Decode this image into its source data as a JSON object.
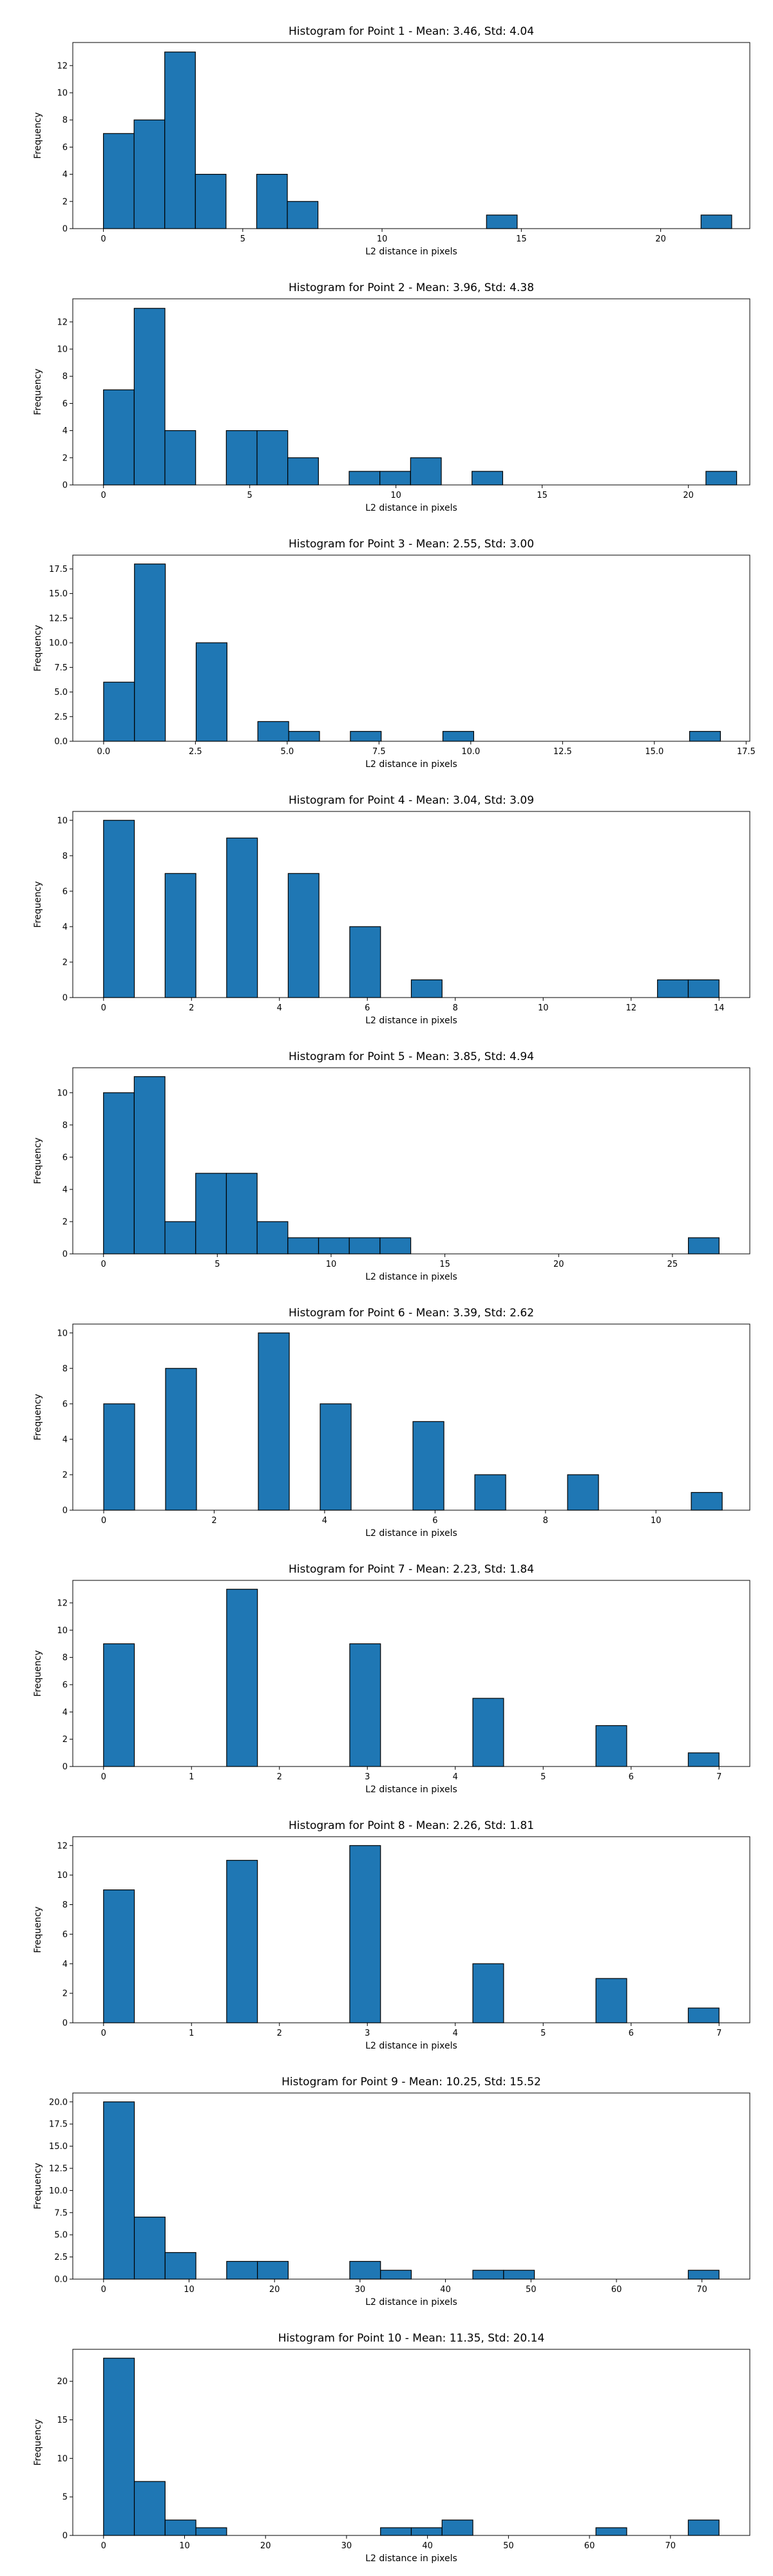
{
  "chart_data": [
    {
      "type": "bar",
      "title": "Histogram for Point 1 - Mean: 3.46, Std: 4.04",
      "xlabel": "L2 distance in pixels",
      "ylabel": "Frequency",
      "xlim": [
        -1.1,
        23.2
      ],
      "ylim": [
        0,
        13.7
      ],
      "xticks": [
        0,
        5,
        10,
        15,
        20
      ],
      "xtick_labels": [
        "0",
        "5",
        "10",
        "15",
        "20"
      ],
      "yticks": [
        0,
        2,
        4,
        6,
        8,
        10,
        12
      ],
      "ytick_labels": [
        "0",
        "2",
        "4",
        "6",
        "8",
        "10",
        "12"
      ],
      "bin_width": 1.1,
      "bins": [
        {
          "x": 0,
          "count": 7
        },
        {
          "x": 1.1,
          "count": 8
        },
        {
          "x": 2.2,
          "count": 13
        },
        {
          "x": 3.3,
          "count": 4
        },
        {
          "x": 5.5,
          "count": 4
        },
        {
          "x": 6.6,
          "count": 2
        },
        {
          "x": 13.75,
          "count": 1
        },
        {
          "x": 21.45,
          "count": 1
        }
      ]
    },
    {
      "type": "bar",
      "title": "Histogram for Point 2 - Mean: 3.96, Std: 4.38",
      "xlabel": "L2 distance in pixels",
      "ylabel": "Frequency",
      "xlim": [
        -1.05,
        22.1
      ],
      "ylim": [
        0,
        13.7
      ],
      "xticks": [
        0,
        5,
        10,
        15,
        20
      ],
      "xtick_labels": [
        "0",
        "5",
        "10",
        "15",
        "20"
      ],
      "yticks": [
        0,
        2,
        4,
        6,
        8,
        10,
        12
      ],
      "ytick_labels": [
        "0",
        "2",
        "4",
        "6",
        "8",
        "10",
        "12"
      ],
      "bin_width": 1.05,
      "bins": [
        {
          "x": 0,
          "count": 7
        },
        {
          "x": 1.05,
          "count": 13
        },
        {
          "x": 2.1,
          "count": 4
        },
        {
          "x": 4.2,
          "count": 4
        },
        {
          "x": 5.25,
          "count": 4
        },
        {
          "x": 6.3,
          "count": 2
        },
        {
          "x": 8.4,
          "count": 1
        },
        {
          "x": 9.45,
          "count": 1
        },
        {
          "x": 10.5,
          "count": 2
        },
        {
          "x": 12.6,
          "count": 1
        },
        {
          "x": 20.6,
          "count": 1
        }
      ]
    },
    {
      "type": "bar",
      "title": "Histogram for Point 3 - Mean: 2.55, Std: 3.00",
      "xlabel": "L2 distance in pixels",
      "ylabel": "Frequency",
      "xlim": [
        -0.84,
        17.6
      ],
      "ylim": [
        0,
        18.9
      ],
      "xticks": [
        0.0,
        2.5,
        5.0,
        7.5,
        10.0,
        12.5,
        15.0,
        17.5
      ],
      "xtick_labels": [
        "0.0",
        "2.5",
        "5.0",
        "7.5",
        "10.0",
        "12.5",
        "15.0",
        "17.5"
      ],
      "yticks": [
        0,
        2.5,
        5,
        7.5,
        10,
        12.5,
        15,
        17.5
      ],
      "ytick_labels": [
        "0.0",
        "2.5",
        "5.0",
        "7.5",
        "10.0",
        "12.5",
        "15.0",
        "17.5"
      ],
      "bin_width": 0.84,
      "bins": [
        {
          "x": 0,
          "count": 6
        },
        {
          "x": 0.84,
          "count": 18
        },
        {
          "x": 2.52,
          "count": 10
        },
        {
          "x": 4.2,
          "count": 2
        },
        {
          "x": 5.04,
          "count": 1
        },
        {
          "x": 6.72,
          "count": 1
        },
        {
          "x": 9.24,
          "count": 1
        },
        {
          "x": 15.96,
          "count": 1
        }
      ]
    },
    {
      "type": "bar",
      "title": "Histogram for Point 4 - Mean: 3.04, Std: 3.09",
      "xlabel": "L2 distance in pixels",
      "ylabel": "Frequency",
      "xlim": [
        -0.7,
        14.7
      ],
      "ylim": [
        0,
        10.5
      ],
      "xticks": [
        0,
        2,
        4,
        6,
        8,
        10,
        12,
        14
      ],
      "xtick_labels": [
        "0",
        "2",
        "4",
        "6",
        "8",
        "10",
        "12",
        "14"
      ],
      "yticks": [
        0,
        2,
        4,
        6,
        8,
        10
      ],
      "ytick_labels": [
        "0",
        "2",
        "4",
        "6",
        "8",
        "10"
      ],
      "bin_width": 0.7,
      "bins": [
        {
          "x": 0,
          "count": 10
        },
        {
          "x": 1.4,
          "count": 7
        },
        {
          "x": 2.8,
          "count": 9
        },
        {
          "x": 4.2,
          "count": 7
        },
        {
          "x": 5.6,
          "count": 4
        },
        {
          "x": 7.0,
          "count": 1
        },
        {
          "x": 12.6,
          "count": 1
        },
        {
          "x": 13.3,
          "count": 1
        }
      ]
    },
    {
      "type": "bar",
      "title": "Histogram for Point 5 - Mean: 3.85, Std: 4.94",
      "xlabel": "L2 distance in pixels",
      "ylabel": "Frequency",
      "xlim": [
        -1.35,
        28.4
      ],
      "ylim": [
        0,
        11.55
      ],
      "xticks": [
        0,
        5,
        10,
        15,
        20,
        25
      ],
      "xtick_labels": [
        "0",
        "5",
        "10",
        "15",
        "20",
        "25"
      ],
      "yticks": [
        0,
        2,
        4,
        6,
        8,
        10
      ],
      "ytick_labels": [
        "0",
        "2",
        "4",
        "6",
        "8",
        "10"
      ],
      "bin_width": 1.35,
      "bins": [
        {
          "x": 0,
          "count": 10
        },
        {
          "x": 1.35,
          "count": 11
        },
        {
          "x": 2.7,
          "count": 2
        },
        {
          "x": 4.05,
          "count": 5
        },
        {
          "x": 5.4,
          "count": 5
        },
        {
          "x": 6.75,
          "count": 2
        },
        {
          "x": 8.1,
          "count": 1
        },
        {
          "x": 9.45,
          "count": 1
        },
        {
          "x": 10.8,
          "count": 1
        },
        {
          "x": 12.15,
          "count": 1
        },
        {
          "x": 25.7,
          "count": 1
        }
      ]
    },
    {
      "type": "bar",
      "title": "Histogram for Point 6 - Mean: 3.39, Std: 2.62",
      "xlabel": "L2 distance in pixels",
      "ylabel": "Frequency",
      "xlim": [
        -0.56,
        11.7
      ],
      "ylim": [
        0,
        10.5
      ],
      "xticks": [
        0,
        2,
        4,
        6,
        8,
        10
      ],
      "xtick_labels": [
        "0",
        "2",
        "4",
        "6",
        "8",
        "10"
      ],
      "yticks": [
        0,
        2,
        4,
        6,
        8,
        10
      ],
      "ytick_labels": [
        "0",
        "2",
        "4",
        "6",
        "8",
        "10"
      ],
      "bin_width": 0.56,
      "bins": [
        {
          "x": 0,
          "count": 6
        },
        {
          "x": 1.12,
          "count": 8
        },
        {
          "x": 2.8,
          "count": 10
        },
        {
          "x": 3.92,
          "count": 6
        },
        {
          "x": 5.6,
          "count": 5
        },
        {
          "x": 6.72,
          "count": 2
        },
        {
          "x": 8.4,
          "count": 2
        },
        {
          "x": 10.64,
          "count": 1
        }
      ]
    },
    {
      "type": "bar",
      "title": "Histogram for Point 7 - Mean: 2.23, Std: 1.84",
      "xlabel": "L2 distance in pixels",
      "ylabel": "Frequency",
      "xlim": [
        -0.35,
        7.35
      ],
      "ylim": [
        0,
        13.65
      ],
      "xticks": [
        0,
        1,
        2,
        3,
        4,
        5,
        6,
        7
      ],
      "xtick_labels": [
        "0",
        "1",
        "2",
        "3",
        "4",
        "5",
        "6",
        "7"
      ],
      "yticks": [
        0,
        2,
        4,
        6,
        8,
        10,
        12
      ],
      "ytick_labels": [
        "0",
        "2",
        "4",
        "6",
        "8",
        "10",
        "12"
      ],
      "bin_width": 0.35,
      "bins": [
        {
          "x": 0,
          "count": 9
        },
        {
          "x": 1.4,
          "count": 13
        },
        {
          "x": 2.8,
          "count": 9
        },
        {
          "x": 4.2,
          "count": 5
        },
        {
          "x": 5.6,
          "count": 3
        },
        {
          "x": 6.65,
          "count": 1
        }
      ]
    },
    {
      "type": "bar",
      "title": "Histogram for Point 8 - Mean: 2.26, Std: 1.81",
      "xlabel": "L2 distance in pixels",
      "ylabel": "Frequency",
      "xlim": [
        -0.35,
        7.35
      ],
      "ylim": [
        0,
        12.6
      ],
      "xticks": [
        0,
        1,
        2,
        3,
        4,
        5,
        6,
        7
      ],
      "xtick_labels": [
        "0",
        "1",
        "2",
        "3",
        "4",
        "5",
        "6",
        "7"
      ],
      "yticks": [
        0,
        2,
        4,
        6,
        8,
        10,
        12
      ],
      "ytick_labels": [
        "0",
        "2",
        "4",
        "6",
        "8",
        "10",
        "12"
      ],
      "bin_width": 0.35,
      "bins": [
        {
          "x": 0,
          "count": 9
        },
        {
          "x": 1.4,
          "count": 11
        },
        {
          "x": 2.8,
          "count": 12
        },
        {
          "x": 4.2,
          "count": 4
        },
        {
          "x": 5.6,
          "count": 3
        },
        {
          "x": 6.65,
          "count": 1
        }
      ]
    },
    {
      "type": "bar",
      "title": "Histogram for Point 9 - Mean: 10.25, Std: 15.52",
      "xlabel": "L2 distance in pixels",
      "ylabel": "Frequency",
      "xlim": [
        -3.6,
        75.6
      ],
      "ylim": [
        0,
        21
      ],
      "xticks": [
        0,
        10,
        20,
        30,
        40,
        50,
        60,
        70
      ],
      "xtick_labels": [
        "0",
        "10",
        "20",
        "30",
        "40",
        "50",
        "60",
        "70"
      ],
      "yticks": [
        0,
        2.5,
        5,
        7.5,
        10,
        12.5,
        15,
        17.5,
        20
      ],
      "ytick_labels": [
        "0.0",
        "2.5",
        "5.0",
        "7.5",
        "10.0",
        "12.5",
        "15.0",
        "17.5",
        "20.0"
      ],
      "bin_width": 3.6,
      "bins": [
        {
          "x": 0,
          "count": 20
        },
        {
          "x": 3.6,
          "count": 7
        },
        {
          "x": 7.2,
          "count": 3
        },
        {
          "x": 14.4,
          "count": 2
        },
        {
          "x": 18.0,
          "count": 2
        },
        {
          "x": 28.8,
          "count": 2
        },
        {
          "x": 32.4,
          "count": 1
        },
        {
          "x": 43.2,
          "count": 1
        },
        {
          "x": 46.8,
          "count": 1
        },
        {
          "x": 68.4,
          "count": 1
        }
      ]
    },
    {
      "type": "bar",
      "title": "Histogram for Point 10 - Mean: 11.35, Std: 20.14",
      "xlabel": "L2 distance in pixels",
      "ylabel": "Frequency",
      "xlim": [
        -3.8,
        79.8
      ],
      "ylim": [
        0,
        24.15
      ],
      "xticks": [
        0,
        10,
        20,
        30,
        40,
        50,
        60,
        70
      ],
      "xtick_labels": [
        "0",
        "10",
        "20",
        "30",
        "40",
        "50",
        "60",
        "70"
      ],
      "yticks": [
        0,
        5,
        10,
        15,
        20
      ],
      "ytick_labels": [
        "0",
        "5",
        "10",
        "15",
        "20"
      ],
      "bin_width": 3.8,
      "bins": [
        {
          "x": 0,
          "count": 23
        },
        {
          "x": 3.8,
          "count": 7
        },
        {
          "x": 7.6,
          "count": 2
        },
        {
          "x": 11.4,
          "count": 1
        },
        {
          "x": 34.2,
          "count": 1
        },
        {
          "x": 38.0,
          "count": 1
        },
        {
          "x": 41.8,
          "count": 2
        },
        {
          "x": 60.8,
          "count": 1
        },
        {
          "x": 72.2,
          "count": 2
        }
      ]
    }
  ]
}
